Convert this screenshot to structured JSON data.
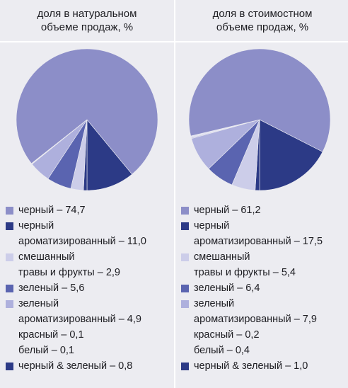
{
  "colors": {
    "black_tea": "#8c8ec8",
    "flavored_black": "#2c3a86",
    "mixed": "#cccde9",
    "green": "#5a64b0",
    "flavored_green": "#aeb0dd",
    "red": "#b4b6e0",
    "white": "#e2e3f2",
    "black_green": "#2c3a86"
  },
  "panels": [
    {
      "header_line1": "доля в натуральном",
      "header_line2": "объеме продаж, %",
      "legend": [
        {
          "lines": [
            "черный – 74,7"
          ],
          "swatch": "black_tea"
        },
        {
          "lines": [
            "черный",
            "ароматизированный – 11,0"
          ],
          "swatch": "flavored_black"
        },
        {
          "lines": [
            "смешанный",
            "травы и фрукты – 2,9"
          ],
          "swatch": "mixed"
        },
        {
          "lines": [
            "зеленый – 5,6"
          ],
          "swatch": "green"
        },
        {
          "lines": [
            "зеленый",
            "ароматизированный – 4,9"
          ],
          "swatch": "flavored_green"
        },
        {
          "lines": [
            "красный – 0,1"
          ],
          "swatch": ""
        },
        {
          "lines": [
            "белый – 0,1"
          ],
          "swatch": ""
        },
        {
          "lines": [
            "черный & зеленый – 0,8"
          ],
          "swatch": "black_green"
        }
      ]
    },
    {
      "header_line1": "доля в стоимостном",
      "header_line2": "объеме продаж, %",
      "legend": [
        {
          "lines": [
            "черный – 61,2"
          ],
          "swatch": "black_tea"
        },
        {
          "lines": [
            "черный",
            "ароматизированный – 17,5"
          ],
          "swatch": "flavored_black"
        },
        {
          "lines": [
            "смешанный",
            "травы и фрукты – 5,4"
          ],
          "swatch": "mixed"
        },
        {
          "lines": [
            "зеленый – 6,4"
          ],
          "swatch": "green"
        },
        {
          "lines": [
            "зеленый",
            "ароматизированный – 7,9"
          ],
          "swatch": "flavored_green"
        },
        {
          "lines": [
            "красный – 0,2"
          ],
          "swatch": ""
        },
        {
          "lines": [
            "белый – 0,4"
          ],
          "swatch": ""
        },
        {
          "lines": [
            "черный & зеленый – 1,0"
          ],
          "swatch": "black_green"
        }
      ]
    }
  ],
  "chart_data": [
    {
      "type": "pie",
      "title": "доля в натуральном объеме продаж, %",
      "categories": [
        "черный",
        "черный ароматизированный",
        "смешанный травы и фрукты",
        "зеленый",
        "зеленый ароматизированный",
        "красный",
        "белый",
        "черный & зеленый"
      ],
      "values": [
        74.7,
        11.0,
        2.9,
        5.6,
        4.9,
        0.1,
        0.1,
        0.8
      ],
      "colors": [
        "#8c8ec8",
        "#2c3a86",
        "#cccde9",
        "#5a64b0",
        "#aeb0dd",
        "#b4b6e0",
        "#e2e3f2",
        "#2c3a86"
      ]
    },
    {
      "type": "pie",
      "title": "доля в стоимостном объеме продаж, %",
      "categories": [
        "черный",
        "черный ароматизированный",
        "смешанный травы и фрукты",
        "зеленый",
        "зеленый ароматизированный",
        "красный",
        "белый",
        "черный & зеленый"
      ],
      "values": [
        61.2,
        17.5,
        5.4,
        6.4,
        7.9,
        0.2,
        0.4,
        1.0
      ],
      "colors": [
        "#8c8ec8",
        "#2c3a86",
        "#cccde9",
        "#5a64b0",
        "#aeb0dd",
        "#b4b6e0",
        "#e2e3f2",
        "#2c3a86"
      ]
    }
  ]
}
